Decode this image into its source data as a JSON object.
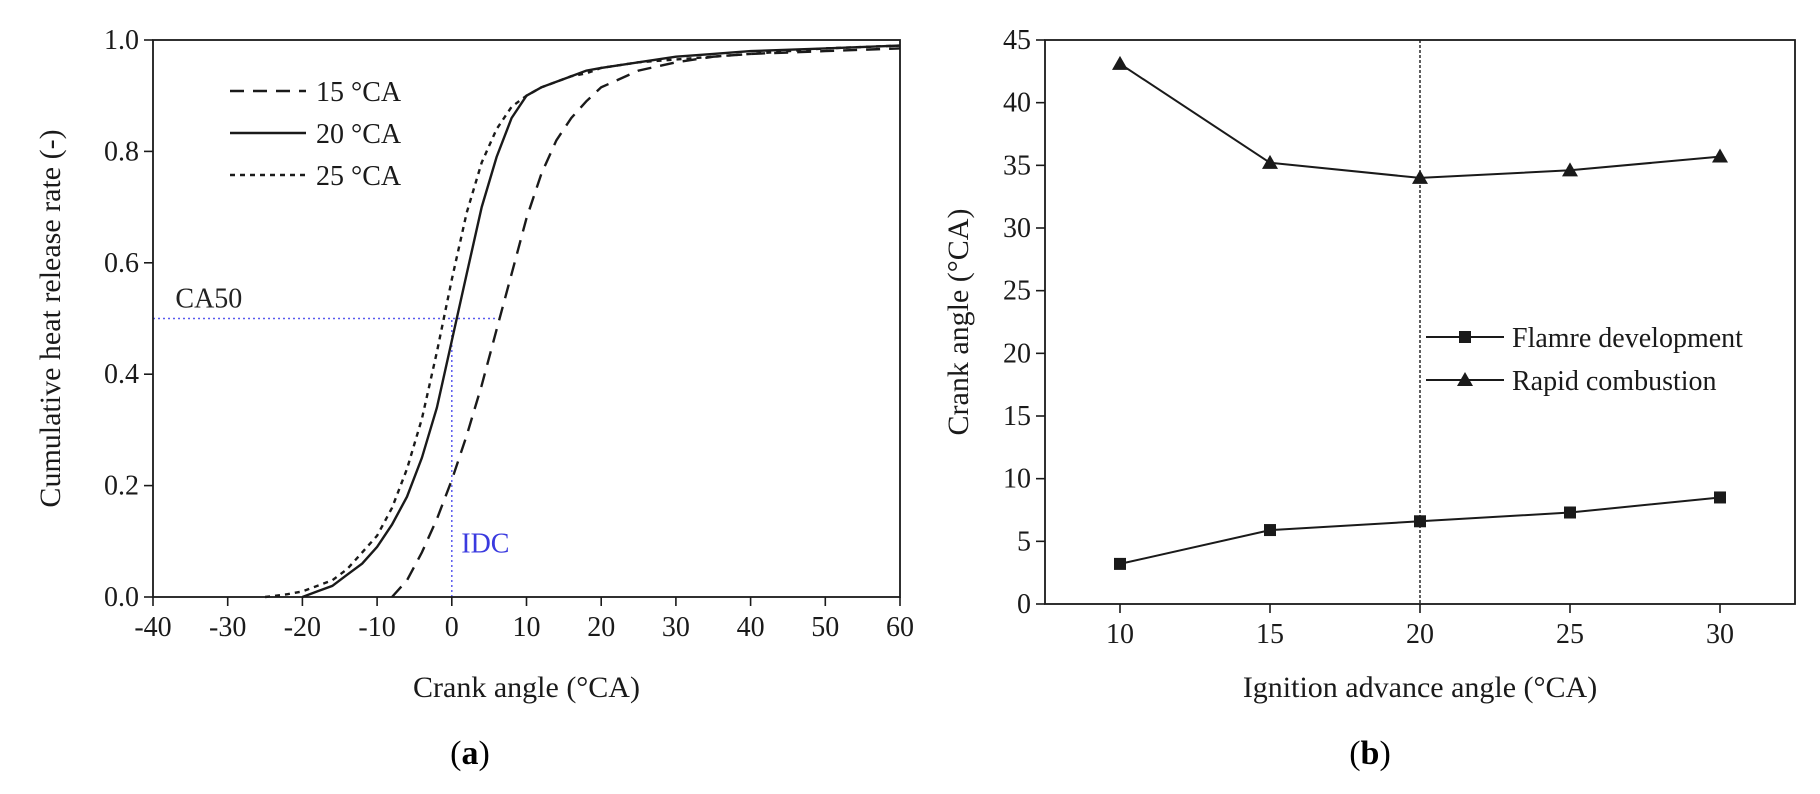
{
  "panels": {
    "a": {
      "caption_open": "(",
      "caption_letter": "a",
      "caption_close": ")"
    },
    "b": {
      "caption_open": "(",
      "caption_letter": "b",
      "caption_close": ")"
    }
  },
  "chart_data": [
    {
      "id": "a",
      "type": "line",
      "xlabel": "Crank angle (°CA)",
      "ylabel": "Cumulative heat release rate (-)",
      "xlim": [
        -40,
        60
      ],
      "ylim": [
        0.0,
        1.0
      ],
      "xticks": [
        -40,
        -30,
        -20,
        -10,
        0,
        10,
        20,
        30,
        40,
        50,
        60
      ],
      "yticks": [
        0.0,
        0.2,
        0.4,
        0.6,
        0.8,
        1.0
      ],
      "ytick_labels": [
        "0.0",
        "0.2",
        "0.4",
        "0.6",
        "0.8",
        "1.0"
      ],
      "grid": false,
      "legend_position": "top-left",
      "series": [
        {
          "name": "15 °CA",
          "dash": "dashed",
          "color": "#1a1a1a",
          "x": [
            -8,
            -6,
            -4,
            -2,
            0,
            2,
            4,
            6,
            8,
            10,
            12,
            14,
            16,
            18,
            20,
            25,
            30,
            35,
            40,
            50,
            60
          ],
          "y": [
            0.0,
            0.03,
            0.08,
            0.14,
            0.21,
            0.29,
            0.38,
            0.48,
            0.58,
            0.68,
            0.76,
            0.82,
            0.86,
            0.89,
            0.915,
            0.945,
            0.96,
            0.97,
            0.975,
            0.98,
            0.985
          ]
        },
        {
          "name": "20 °CA",
          "dash": "solid",
          "color": "#1a1a1a",
          "x": [
            -20,
            -18,
            -16,
            -14,
            -12,
            -10,
            -8,
            -6,
            -4,
            -2,
            0,
            2,
            4,
            6,
            8,
            10,
            12,
            14,
            16,
            18,
            20,
            25,
            30,
            35,
            40,
            50,
            60
          ],
          "y": [
            0.0,
            0.01,
            0.02,
            0.04,
            0.06,
            0.09,
            0.13,
            0.18,
            0.25,
            0.34,
            0.46,
            0.58,
            0.7,
            0.79,
            0.86,
            0.9,
            0.915,
            0.925,
            0.935,
            0.945,
            0.95,
            0.96,
            0.97,
            0.975,
            0.98,
            0.985,
            0.99
          ]
        },
        {
          "name": "25 °CA",
          "dash": "dotted",
          "color": "#1a1a1a",
          "x": [
            -25,
            -22,
            -20,
            -18,
            -16,
            -14,
            -12,
            -10,
            -8,
            -6,
            -4,
            -2,
            0,
            2,
            4,
            6,
            8,
            10,
            12,
            14,
            16,
            18,
            20,
            25,
            30,
            35,
            40,
            50,
            60
          ],
          "y": [
            0.0,
            0.005,
            0.01,
            0.02,
            0.03,
            0.05,
            0.08,
            0.11,
            0.16,
            0.23,
            0.32,
            0.44,
            0.57,
            0.69,
            0.78,
            0.84,
            0.88,
            0.9,
            0.915,
            0.925,
            0.935,
            0.94,
            0.95,
            0.96,
            0.965,
            0.97,
            0.975,
            0.985,
            0.99
          ]
        }
      ],
      "annotations": [
        {
          "text": "CA50",
          "color": "#222222",
          "at": [
            -37,
            0.52
          ]
        },
        {
          "text": "IDC",
          "color": "#3a3adf",
          "at": [
            1,
            0.08
          ]
        }
      ],
      "reference_lines": {
        "color": "#5a5aee",
        "hline_y": 0.5,
        "hline_x_range": [
          -40,
          6
        ],
        "vline_x": 0,
        "vline_y_range": [
          0,
          0.5
        ]
      }
    },
    {
      "id": "b",
      "type": "line",
      "xlabel": "Ignition advance angle (°CA)",
      "ylabel": "Crank angle (°CA)",
      "xlim": [
        7.5,
        32.5
      ],
      "ylim": [
        0,
        45
      ],
      "xticks": [
        10,
        15,
        20,
        25,
        30
      ],
      "yticks": [
        0,
        5,
        10,
        15,
        20,
        25,
        30,
        35,
        40,
        45
      ],
      "grid": false,
      "legend_position": "center-right",
      "reference_vline_x": 20,
      "categories": [
        10,
        15,
        20,
        25,
        30
      ],
      "series": [
        {
          "name": "Flamre development",
          "marker": "square",
          "color": "#1a1a1a",
          "values": [
            3.2,
            5.9,
            6.6,
            7.3,
            8.5
          ]
        },
        {
          "name": "Rapid combustion",
          "marker": "triangle",
          "color": "#1a1a1a",
          "values": [
            43.1,
            35.2,
            34.0,
            34.6,
            35.7
          ]
        }
      ]
    }
  ]
}
